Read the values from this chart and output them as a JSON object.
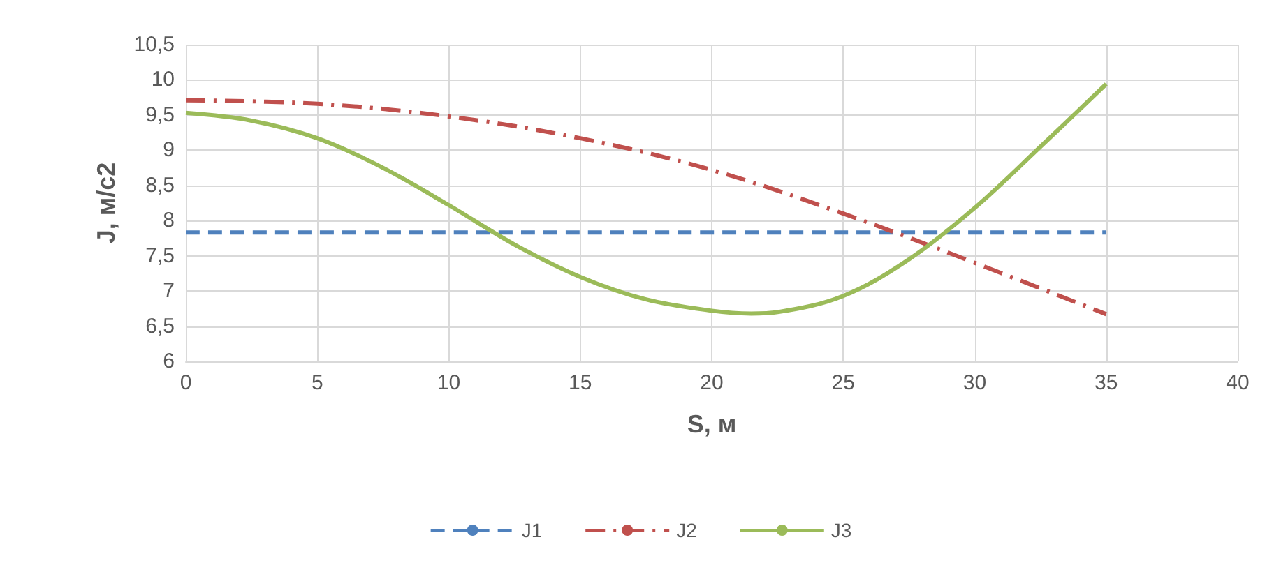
{
  "chart_data": {
    "type": "line",
    "xlabel": "S, м",
    "ylabel": "J, м/с2",
    "xlim": [
      0,
      40
    ],
    "xticks": [
      0,
      5,
      10,
      15,
      20,
      25,
      30,
      35,
      40
    ],
    "ylim": [
      6,
      10.5
    ],
    "yticks": [
      6,
      {
        "value": 6.5,
        "label": "6,5"
      },
      7,
      {
        "value": 7.5,
        "label": "7,5"
      },
      8,
      {
        "value": 8.5,
        "label": "8,5"
      },
      9,
      {
        "value": 9.5,
        "label": "9,5"
      },
      10,
      {
        "value": 10.5,
        "label": "10,5"
      }
    ],
    "grid": true,
    "legend": "bottom",
    "marker": "none",
    "series": [
      {
        "name": "J1",
        "color": "#4f81bd",
        "line_style": "dashed",
        "x": [
          0,
          35
        ],
        "values": [
          7.83,
          7.83
        ]
      },
      {
        "name": "J2",
        "color": "#c0504d",
        "line_style": "dashdot",
        "x": [
          0,
          5,
          10,
          15,
          20,
          25,
          30,
          35
        ],
        "values": [
          9.71,
          9.66,
          9.48,
          9.17,
          8.72,
          8.1,
          7.4,
          6.67
        ]
      },
      {
        "name": "J3",
        "color": "#9bbb59",
        "line_style": "solid",
        "x": [
          0,
          2.5,
          5,
          7.5,
          10,
          12.5,
          15,
          17.5,
          20,
          21.5,
          22.5,
          25,
          27.5,
          30,
          32.5,
          35
        ],
        "values": [
          9.53,
          9.42,
          9.17,
          8.75,
          8.22,
          7.66,
          7.2,
          6.88,
          6.72,
          6.68,
          6.7,
          6.93,
          7.45,
          8.18,
          9.05,
          9.94
        ]
      }
    ]
  }
}
